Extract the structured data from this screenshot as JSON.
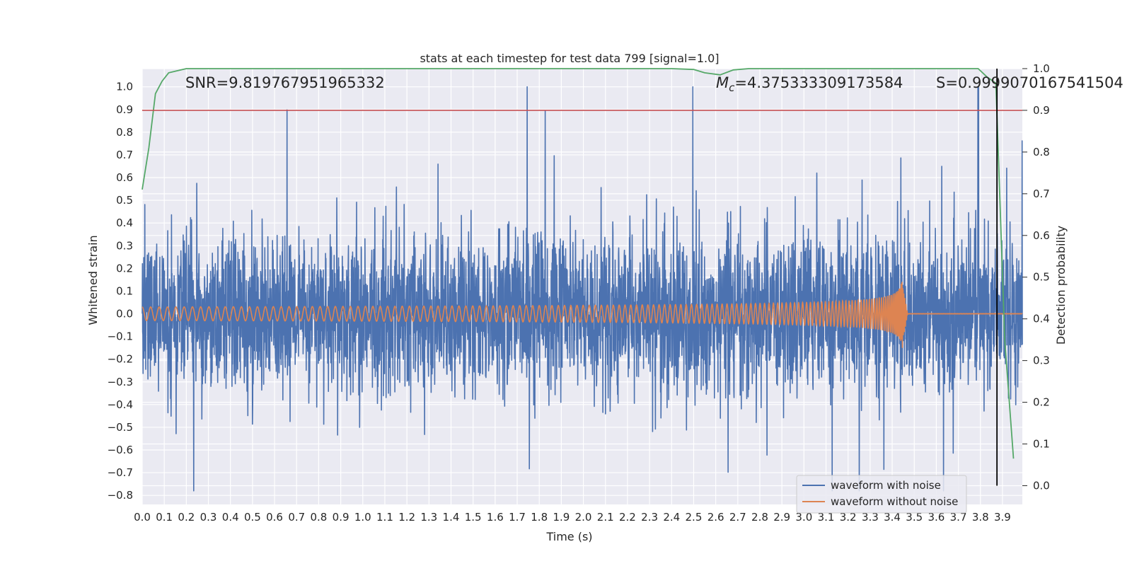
{
  "chart_data": {
    "type": "line",
    "title": "stats at each timestep for test data 799 [signal=1.0]",
    "xlabel": "Time (s)",
    "ylabel": "Whitened strain",
    "ylabel_right": "Detection probability",
    "xlim": [
      0.0,
      3.99
    ],
    "ylim": [
      -0.84,
      1.08
    ],
    "ylim_right": [
      -0.045,
      1.0
    ],
    "x_ticks": [
      0.0,
      0.1,
      0.2,
      0.3,
      0.4,
      0.5,
      0.6,
      0.7,
      0.8,
      0.9,
      1.0,
      1.1,
      1.2,
      1.3,
      1.4,
      1.5,
      1.6,
      1.7,
      1.8,
      1.9,
      2.0,
      2.1,
      2.2,
      2.3,
      2.4,
      2.5,
      2.6,
      2.7,
      2.8,
      2.9,
      3.0,
      3.1,
      3.2,
      3.3,
      3.4,
      3.5,
      3.6,
      3.7,
      3.8,
      3.9
    ],
    "x_tick_labels": [
      "0.0",
      "0.1",
      "0.2",
      "0.3",
      "0.4",
      "0.5",
      "0.6",
      "0.7",
      "0.8",
      "0.9",
      "1.0",
      "1.1",
      "1.2",
      "1.3",
      "1.4",
      "1.5",
      "1.6",
      "1.7",
      "1.8",
      "1.9",
      "2.0",
      "2.1",
      "2.2",
      "2.3",
      "2.4",
      "2.5",
      "2.6",
      "2.7",
      "2.8",
      "2.9",
      "3.0",
      "3.1",
      "3.2",
      "3.3",
      "3.4",
      "3.5",
      "3.6",
      "3.7",
      "3.8",
      "3.9"
    ],
    "y_ticks": [
      1.0,
      0.9,
      0.8,
      0.7,
      0.6,
      0.5,
      0.4,
      0.3,
      0.2,
      0.1,
      0.0,
      -0.1,
      -0.2,
      -0.3,
      -0.4,
      -0.5,
      -0.6,
      -0.7,
      -0.8
    ],
    "y_tick_labels": [
      "1.0",
      "0.9",
      "0.8",
      "0.7",
      "0.6",
      "0.5",
      "0.4",
      "0.3",
      "0.2",
      "0.1",
      "0.0",
      "−0.1",
      "−0.2",
      "−0.3",
      "−0.4",
      "−0.5",
      "−0.6",
      "−0.7",
      "−0.8"
    ],
    "y_ticks_right": [
      1.0,
      0.9,
      0.8,
      0.7,
      0.6,
      0.5,
      0.4,
      0.3,
      0.2,
      0.1,
      0.0
    ],
    "y_tick_labels_right": [
      "1.0",
      "0.9",
      "0.8",
      "0.7",
      "0.6",
      "0.5",
      "0.4",
      "0.3",
      "0.2",
      "0.1",
      "0.0"
    ],
    "annotations": {
      "snr": "SNR=9.819767951965332",
      "mc_symbol": "M",
      "mc_sub": "c",
      "mc_value": "=4.375333309173584",
      "s": "S=0.9999070167541504"
    },
    "series": [
      {
        "name": "waveform with noise",
        "color": "#4c72b0",
        "description": "whitened strain with noise, roughly gaussian around 0 with peaks up to ~0.8 and ~1.0 near 3.79 s",
        "x_range": [
          0.0,
          3.99
        ],
        "max_peak": {
          "x": 3.79,
          "y": 1.0
        },
        "typical_extent": [
          -0.75,
          0.8
        ]
      },
      {
        "name": "waveform without noise",
        "color": "#dd8452",
        "description": "chirp signal growing in amplitude and frequency, merger near 3.45 s, flat after",
        "x_range": [
          0.0,
          3.99
        ],
        "start_amplitude": 0.03,
        "peak_amplitude": 0.19,
        "merger_time": 3.45
      },
      {
        "name": "detection probability",
        "color": "#55a868",
        "axis": "right",
        "x": [
          0.0,
          0.03,
          0.06,
          0.09,
          0.12,
          0.2,
          0.3,
          0.5,
          1.0,
          1.5,
          2.0,
          2.4,
          2.5,
          2.55,
          2.62,
          2.68,
          2.75,
          2.9,
          3.2,
          3.5,
          3.79,
          3.83,
          3.87,
          3.91,
          3.95
        ],
        "y": [
          0.71,
          0.81,
          0.94,
          0.97,
          0.99,
          1.0,
          1.0,
          1.0,
          1.0,
          1.0,
          1.0,
          1.0,
          0.998,
          0.99,
          0.985,
          0.997,
          1.0,
          1.0,
          1.0,
          1.0,
          1.0,
          0.98,
          0.965,
          0.35,
          0.065
        ]
      }
    ],
    "threshold": {
      "axis": "right",
      "value": 0.9,
      "color": "#c44e52"
    },
    "vertical_line": {
      "x": 3.875,
      "y_range_right": [
        0.0,
        1.0
      ],
      "color": "#000000"
    },
    "legend": {
      "position": "lower-right",
      "entries": [
        {
          "label": "waveform with noise",
          "color": "#4c72b0"
        },
        {
          "label": "waveform without noise",
          "color": "#dd8452"
        }
      ]
    },
    "grid": true,
    "background": "#eaeaf2"
  }
}
